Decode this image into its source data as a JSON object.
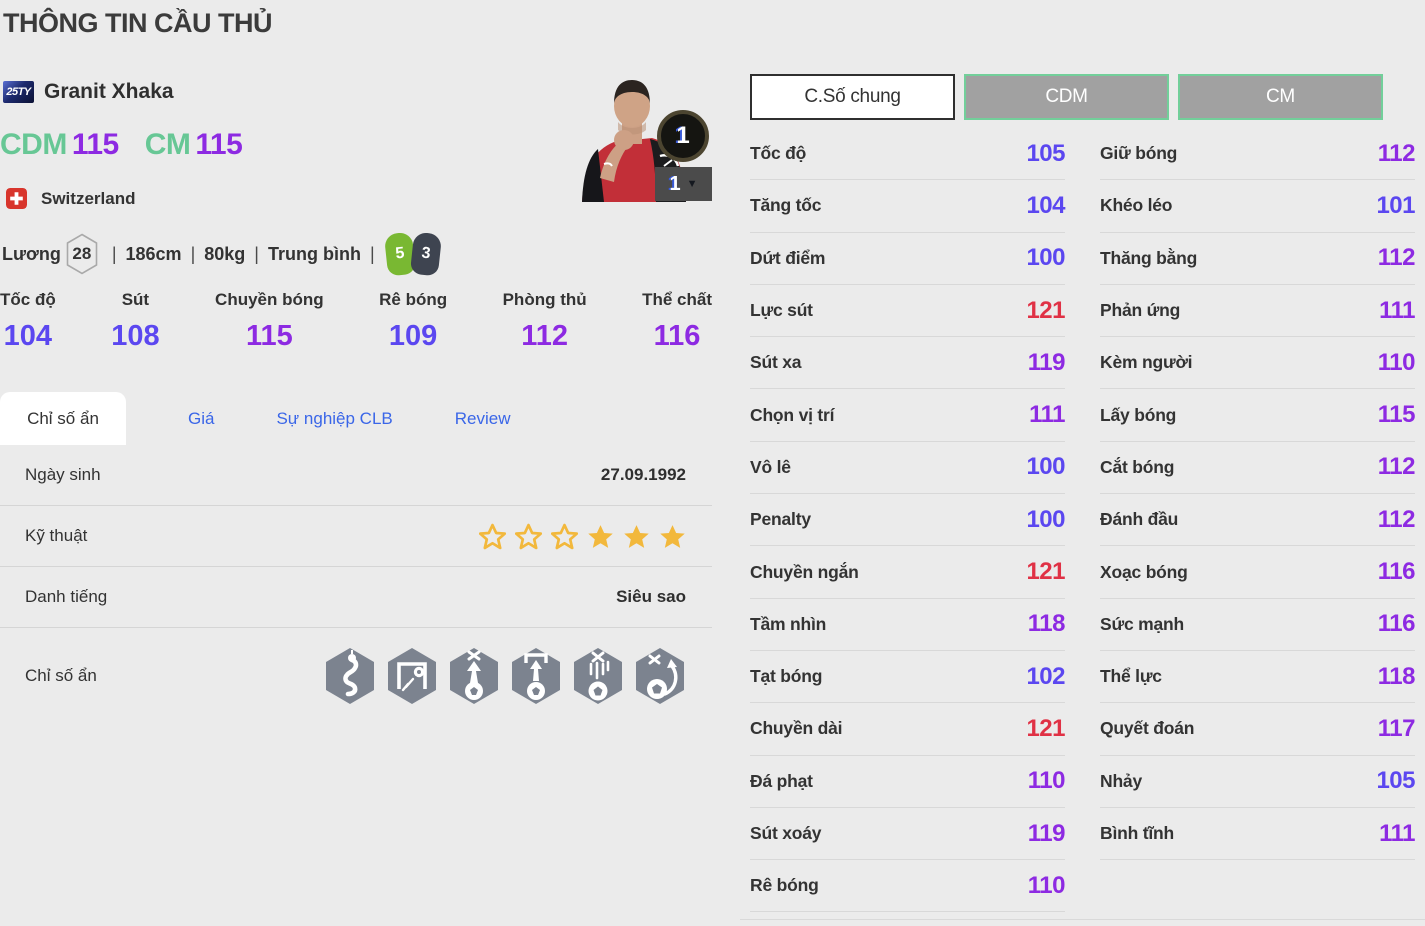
{
  "page": {
    "title": "THÔNG TIN CẦU THỦ"
  },
  "colors": {
    "stat_blue": "#5b47f0",
    "stat_purple": "#8d2ae2",
    "stat_red": "#e03145",
    "green": "#67c795",
    "link": "#3a66e8",
    "star_gold": "#f2b83c",
    "hex_gray": "#7c838f"
  },
  "player": {
    "season_badge": "25TY",
    "name": "Granit Xhaka",
    "positions": [
      {
        "label": "CDM",
        "rating": "115"
      },
      {
        "label": "CM",
        "rating": "115"
      }
    ],
    "nationality": "Switzerland",
    "flag_icon": "switzerland-flag-icon",
    "salary_label": "Lương",
    "salary": "28",
    "separator": "|",
    "height": "186cm",
    "weight": "80kg",
    "body_type": "Trung bình",
    "foot_weak": "5",
    "foot_strong": "3",
    "level_badge": "1",
    "level_select": "1"
  },
  "main_stats": [
    {
      "label": "Tốc độ",
      "value": 104
    },
    {
      "label": "Sút",
      "value": 108
    },
    {
      "label": "Chuyền bóng",
      "value": 115
    },
    {
      "label": "Rê bóng",
      "value": 109
    },
    {
      "label": "Phòng thủ",
      "value": 112
    },
    {
      "label": "Thể chất",
      "value": 116
    }
  ],
  "tabs": [
    {
      "label": "Chỉ số ẩn",
      "active": true
    },
    {
      "label": "Giá",
      "active": false
    },
    {
      "label": "Sự nghiệp CLB",
      "active": false
    },
    {
      "label": "Review",
      "active": false
    }
  ],
  "info_table": {
    "dob_label": "Ngày sinh",
    "dob_value": "27.09.1992",
    "skill_label": "Kỹ thuật",
    "skill_stars_outline": 3,
    "skill_stars_filled": 3,
    "fame_label": "Danh tiếng",
    "fame_value": "Siêu sao",
    "hidden_label": "Chỉ số ẩn",
    "hidden_icons": [
      "snake-icon",
      "goal-corner-shot-icon",
      "high-ball-x-icon",
      "lob-into-goal-icon",
      "dropping-ball-icon",
      "swerve-ball-icon"
    ]
  },
  "detail_panel": {
    "buttons": [
      {
        "label": "C.Số chung",
        "active": true
      },
      {
        "label": "CDM",
        "active": false
      },
      {
        "label": "CM",
        "active": false
      }
    ],
    "left_stats": [
      {
        "label": "Tốc độ",
        "value": 105
      },
      {
        "label": "Tăng tốc",
        "value": 104
      },
      {
        "label": "Dứt điểm",
        "value": 100
      },
      {
        "label": "Lực sút",
        "value": 121
      },
      {
        "label": "Sút xa",
        "value": 119
      },
      {
        "label": "Chọn vị trí",
        "value": 111
      },
      {
        "label": "Vô lê",
        "value": 100
      },
      {
        "label": "Penalty",
        "value": 100
      },
      {
        "label": "Chuyền ngắn",
        "value": 121
      },
      {
        "label": "Tầm nhìn",
        "value": 118
      },
      {
        "label": "Tạt bóng",
        "value": 102
      },
      {
        "label": "Chuyền dài",
        "value": 121
      },
      {
        "label": "Đá phạt",
        "value": 110
      },
      {
        "label": "Sút xoáy",
        "value": 119
      },
      {
        "label": "Rê bóng",
        "value": 110
      }
    ],
    "right_stats": [
      {
        "label": "Giữ bóng",
        "value": 112
      },
      {
        "label": "Khéo léo",
        "value": 101
      },
      {
        "label": "Thăng bằng",
        "value": 112
      },
      {
        "label": "Phản ứng",
        "value": 111
      },
      {
        "label": "Kèm người",
        "value": 110
      },
      {
        "label": "Lấy bóng",
        "value": 115
      },
      {
        "label": "Cắt bóng",
        "value": 112
      },
      {
        "label": "Đánh đầu",
        "value": 112
      },
      {
        "label": "Xoạc bóng",
        "value": 116
      },
      {
        "label": "Sức mạnh",
        "value": 116
      },
      {
        "label": "Thể lực",
        "value": 118
      },
      {
        "label": "Quyết đoán",
        "value": 117
      },
      {
        "label": "Nhảy",
        "value": 105
      },
      {
        "label": "Bình tĩnh",
        "value": 111
      }
    ]
  }
}
